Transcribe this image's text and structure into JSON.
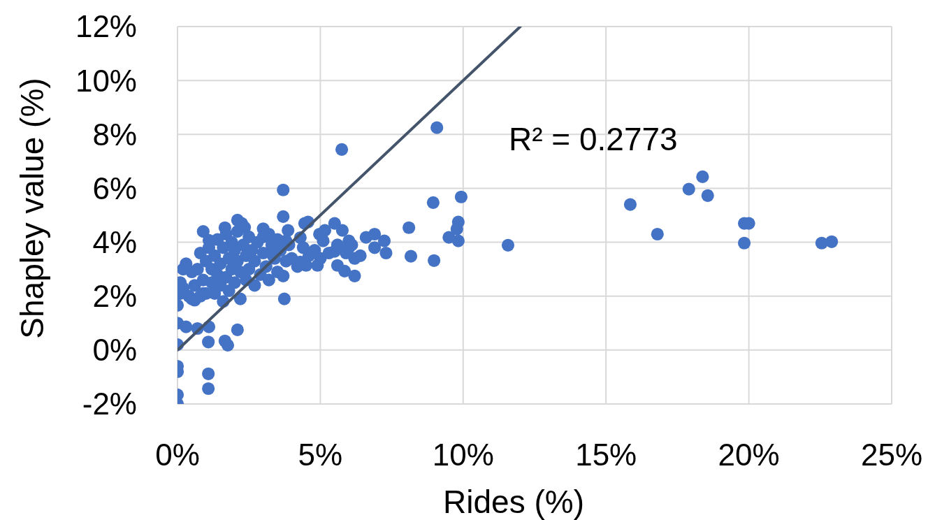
{
  "chart_data": {
    "type": "scatter",
    "xlabel": "Rides (%)",
    "ylabel": "Shapley value (%)",
    "xlim": [
      0,
      25
    ],
    "xticks": [
      {
        "value": 0,
        "label": "0%"
      },
      {
        "value": 5,
        "label": "5%"
      },
      {
        "value": 10,
        "label": "10%"
      },
      {
        "value": 15,
        "label": "15%"
      },
      {
        "value": 20,
        "label": "20%"
      },
      {
        "value": 25,
        "label": "25%"
      }
    ],
    "ylim": [
      -2,
      12
    ],
    "yticks": [
      {
        "value": -2,
        "label": "-2%"
      },
      {
        "value": 0,
        "label": "0%"
      },
      {
        "value": 2,
        "label": "2%"
      },
      {
        "value": 4,
        "label": "4%"
      },
      {
        "value": 6,
        "label": "6%"
      },
      {
        "value": 8,
        "label": "8%"
      },
      {
        "value": 10,
        "label": "10%"
      },
      {
        "value": 12,
        "label": "12%"
      }
    ],
    "grid": true,
    "annotations": [
      "R² = 0.2773"
    ],
    "series": [
      {
        "color": "#4472c4",
        "marker": "circle",
        "x": [
          0,
          0,
          0,
          0,
          1.08,
          1.08,
          0,
          0,
          0.3,
          0.7,
          1.08,
          1.1,
          1.66,
          1.76,
          2.1,
          3.74,
          0,
          0.1,
          0.1,
          0.2,
          0.3,
          0.6,
          0.9,
          0.9,
          1.1,
          1.66,
          2.1,
          2.25,
          2.35,
          3.0,
          3.2,
          3.7,
          3.7,
          3.87,
          3.8,
          4.45,
          4.57,
          4.3,
          4.0,
          3.7,
          3.33,
          4.97,
          5.1,
          5.16,
          5.5,
          5.6,
          5.85,
          6.2,
          6.2,
          5.5,
          5.77,
          6.0,
          6.0,
          6.6,
          6.9,
          6.9,
          7.24,
          7.3,
          8.17,
          8.1,
          8.98,
          8.95,
          9.08,
          5.75,
          9.5,
          9.78,
          9.83,
          9.83,
          9.93,
          11.57,
          15.85,
          16.8,
          17.9,
          18.38,
          18.56,
          19.84,
          20.0,
          19.84,
          22.55,
          22.9,
          4.5,
          4.3,
          4.9,
          0.2,
          0.4,
          0.5,
          0.5,
          0.6,
          0.7,
          0.8,
          0.8,
          0.9,
          1.0,
          1.0,
          1.1,
          1.2,
          1.2,
          1.3,
          1.3,
          1.4,
          1.4,
          1.5,
          1.5,
          1.6,
          1.6,
          1.7,
          1.7,
          1.8,
          1.8,
          1.9,
          1.9,
          2.0,
          2.0,
          2.1,
          2.1,
          2.2,
          2.2,
          2.3,
          2.4,
          2.4,
          2.5,
          2.5,
          2.6,
          2.7,
          2.7,
          2.8,
          2.9,
          3.0,
          3.0,
          3.1,
          3.2,
          3.3,
          3.4,
          3.5,
          3.5,
          3.6,
          3.8,
          3.9,
          4.2,
          4.4,
          4.6,
          4.8,
          5.0,
          5.3,
          5.6,
          5.9,
          6.1,
          6.4
        ],
        "values": [
          -2.0,
          -1.66,
          -0.8,
          -0.6,
          -0.88,
          -1.43,
          0.2,
          1.0,
          0.86,
          0.8,
          0.3,
          0.86,
          0.34,
          0.18,
          0.75,
          1.9,
          1.66,
          2.1,
          2.5,
          3.0,
          3.2,
          1.85,
          2.1,
          4.4,
          4.07,
          4.54,
          4.82,
          4.7,
          4.55,
          4.5,
          4.3,
          5.94,
          4.95,
          4.44,
          4.05,
          4.7,
          4.75,
          4.17,
          3.4,
          2.75,
          3.53,
          4.3,
          4.05,
          4.44,
          3.66,
          3.14,
          2.93,
          3.4,
          2.75,
          4.7,
          4.44,
          4.05,
          3.8,
          4.18,
          4.3,
          3.8,
          4.05,
          3.6,
          3.48,
          4.54,
          3.32,
          5.47,
          8.25,
          7.44,
          4.18,
          4.49,
          4.75,
          4.05,
          5.68,
          3.89,
          5.4,
          4.3,
          5.97,
          6.43,
          5.73,
          4.7,
          4.7,
          3.97,
          3.97,
          4.02,
          3.14,
          3.27,
          3.14,
          2.3,
          2.0,
          2.9,
          1.9,
          2.4,
          3.0,
          3.6,
          2.0,
          2.6,
          3.3,
          2.1,
          3.8,
          2.5,
          3.0,
          3.5,
          2.1,
          4.1,
          2.8,
          3.2,
          2.4,
          3.8,
          1.8,
          4.3,
          2.7,
          3.4,
          2.2,
          4.0,
          3.0,
          3.7,
          2.5,
          4.4,
          3.3,
          2.9,
          1.9,
          3.9,
          3.5,
          2.6,
          4.2,
          3.0,
          3.7,
          2.4,
          3.3,
          4.0,
          2.8,
          3.6,
          4.2,
          3.1,
          2.6,
          3.9,
          3.4,
          4.1,
          2.9,
          3.7,
          3.3,
          3.9,
          3.1,
          3.8,
          3.5,
          3.7,
          3.4,
          3.6,
          3.9,
          3.6,
          3.9,
          3.5
        ]
      },
      {
        "type": "line",
        "color": "#44546a",
        "line_style": "solid",
        "x": [
          0,
          12
        ],
        "values": [
          0,
          12
        ]
      }
    ]
  }
}
